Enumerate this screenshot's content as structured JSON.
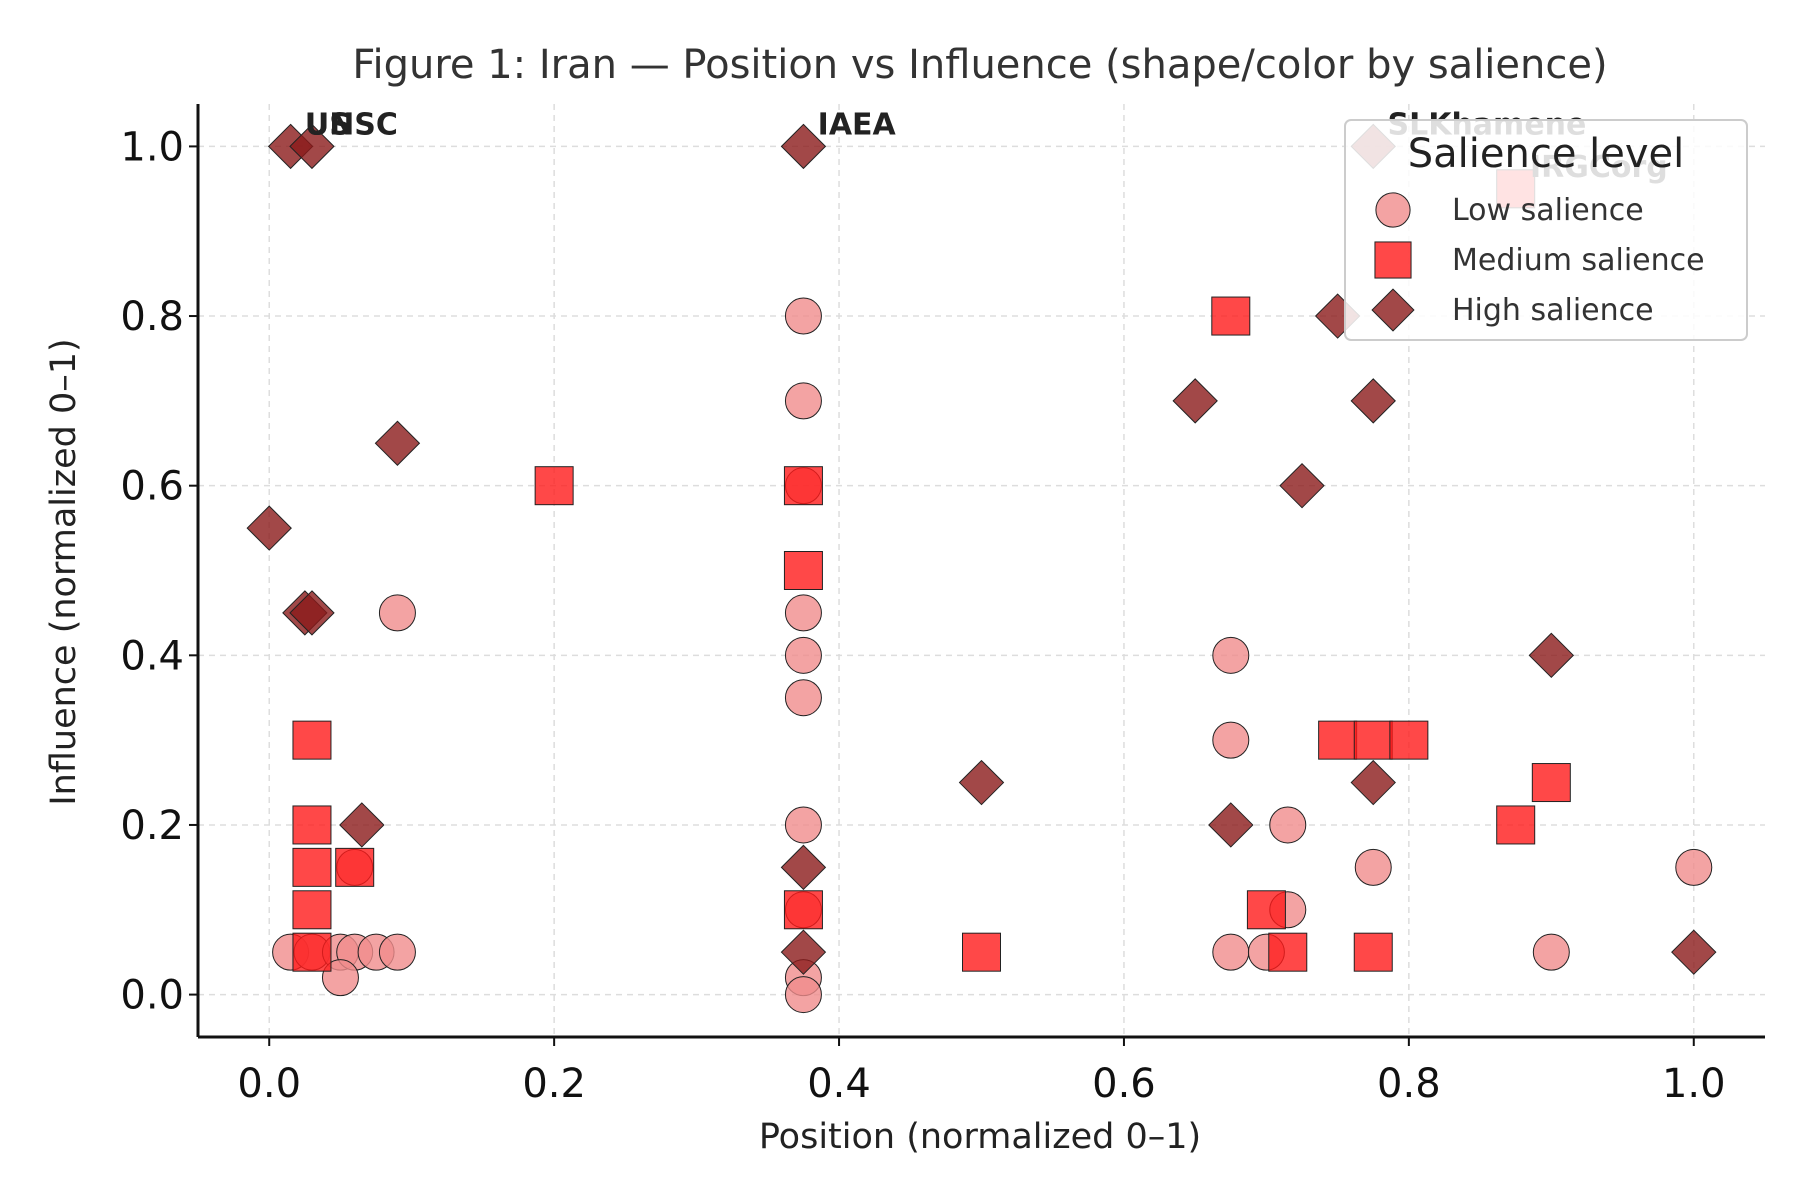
{
  "chart_data": {
    "type": "scatter",
    "title": "Figure 1: Iran — Position vs Influence (shape/color by salience)",
    "xlabel": "Position (normalized 0–1)",
    "ylabel": "Influence (normalized 0–1)",
    "xlim": [
      -0.05,
      1.05
    ],
    "ylim": [
      -0.05,
      1.05
    ],
    "xticks": [
      "0.0",
      "0.2",
      "0.4",
      "0.6",
      "0.8",
      "1.0"
    ],
    "yticks": [
      "0.0",
      "0.2",
      "0.4",
      "0.6",
      "0.8",
      "1.0"
    ],
    "tick_values": [
      0.0,
      0.2,
      0.4,
      0.6,
      0.8,
      1.0
    ],
    "grid": true,
    "legend": {
      "title": "Salience level",
      "placement": "top-right",
      "entries": [
        "Low salience",
        "Medium salience",
        "High salience"
      ]
    },
    "colors": {
      "low": "#f08c8c",
      "medium": "#ff1a1a",
      "high": "#8b1a1a"
    },
    "series": [
      {
        "name": "Low salience",
        "marker": "circle",
        "color": "#f08c8c",
        "points": [
          [
            0.015,
            0.05
          ],
          [
            0.03,
            0.05
          ],
          [
            0.05,
            0.05
          ],
          [
            0.06,
            0.05
          ],
          [
            0.075,
            0.05
          ],
          [
            0.09,
            0.05
          ],
          [
            0.05,
            0.02
          ],
          [
            0.06,
            0.15
          ],
          [
            0.09,
            0.45
          ],
          [
            0.375,
            0.8
          ],
          [
            0.375,
            0.7
          ],
          [
            0.375,
            0.6
          ],
          [
            0.375,
            0.45
          ],
          [
            0.375,
            0.4
          ],
          [
            0.375,
            0.35
          ],
          [
            0.375,
            0.2
          ],
          [
            0.375,
            0.1
          ],
          [
            0.375,
            0.02
          ],
          [
            0.375,
            0.0
          ],
          [
            0.675,
            0.4
          ],
          [
            0.675,
            0.3
          ],
          [
            0.675,
            0.05
          ],
          [
            0.7,
            0.05
          ],
          [
            0.715,
            0.2
          ],
          [
            0.715,
            0.1
          ],
          [
            0.775,
            0.15
          ],
          [
            0.9,
            0.05
          ],
          [
            1.0,
            0.15
          ]
        ]
      },
      {
        "name": "Medium salience",
        "marker": "square",
        "color": "#ff1a1a",
        "points": [
          [
            0.2,
            0.6
          ],
          [
            0.03,
            0.3
          ],
          [
            0.03,
            0.2
          ],
          [
            0.03,
            0.15
          ],
          [
            0.03,
            0.1
          ],
          [
            0.03,
            0.05
          ],
          [
            0.06,
            0.15
          ],
          [
            0.375,
            0.6
          ],
          [
            0.375,
            0.5
          ],
          [
            0.375,
            0.1
          ],
          [
            0.5,
            0.05
          ],
          [
            0.675,
            0.8
          ],
          [
            0.7,
            0.1
          ],
          [
            0.715,
            0.05
          ],
          [
            0.75,
            0.3
          ],
          [
            0.775,
            0.3
          ],
          [
            0.8,
            0.3
          ],
          [
            0.775,
            0.05
          ],
          [
            0.875,
            0.2
          ],
          [
            0.9,
            0.25
          ],
          [
            0.875,
            0.95
          ]
        ]
      },
      {
        "name": "High salience",
        "marker": "diamond",
        "color": "#8b1a1a",
        "points": [
          [
            0.015,
            1.0
          ],
          [
            0.03,
            1.0
          ],
          [
            0.375,
            1.0
          ],
          [
            0.09,
            0.65
          ],
          [
            0.0,
            0.55
          ],
          [
            0.025,
            0.45
          ],
          [
            0.03,
            0.45
          ],
          [
            0.065,
            0.2
          ],
          [
            0.375,
            0.15
          ],
          [
            0.375,
            0.05
          ],
          [
            0.5,
            0.25
          ],
          [
            0.65,
            0.7
          ],
          [
            0.675,
            0.2
          ],
          [
            0.725,
            0.6
          ],
          [
            0.75,
            0.8
          ],
          [
            0.775,
            0.7
          ],
          [
            0.775,
            0.25
          ],
          [
            0.775,
            1.0
          ],
          [
            0.9,
            0.4
          ],
          [
            1.0,
            0.05
          ]
        ]
      }
    ],
    "annotations": [
      {
        "text": "US",
        "x": 0.025,
        "y": 1.0
      },
      {
        "text": "UNSC",
        "x": 0.025,
        "y": 1.0
      },
      {
        "text": "IAEA",
        "x": 0.385,
        "y": 1.0
      },
      {
        "text": "SLKhamene",
        "x": 0.785,
        "y": 1.0
      },
      {
        "text": "IRGCorg",
        "x": 0.885,
        "y": 0.95
      }
    ]
  }
}
